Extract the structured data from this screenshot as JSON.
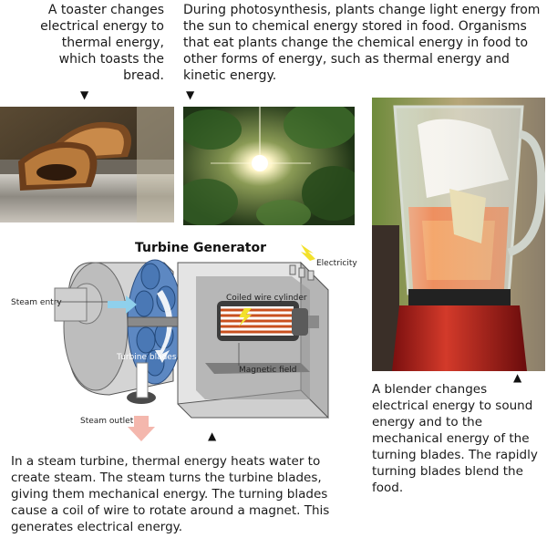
{
  "captions": {
    "toaster": "A toaster changes electrical energy to thermal energy, which toasts the bread.",
    "photosynthesis": "During photosynthesis, plants change light energy from the sun to chemical energy stored in food. Organisms that eat plants change the chemical energy in food to other forms of energy, such as thermal energy and kinetic energy.",
    "blender": "A blender changes electrical energy to sound energy and to the mechanical energy of the turning blades. The rapidly turning blades blend the food.",
    "turbine": "In a steam turbine, thermal energy heats water to create steam. The steam turns the turbine blades, giving them mechanical energy. The turning blades cause a coil of wire to rotate around a magnet. This generates electrical energy."
  },
  "diagram": {
    "title": "Turbine Generator",
    "labels": {
      "electricity": "Electricity",
      "steam_entry": "Steam entry",
      "coiled_wire": "Coiled wire cylinder",
      "turbine_blades": "Turbine blades",
      "magnetic_field": "Magnetic field",
      "steam_outlet": "Steam outlet"
    }
  },
  "markers": {
    "pointer": "▼",
    "pointer_up": "▲"
  }
}
